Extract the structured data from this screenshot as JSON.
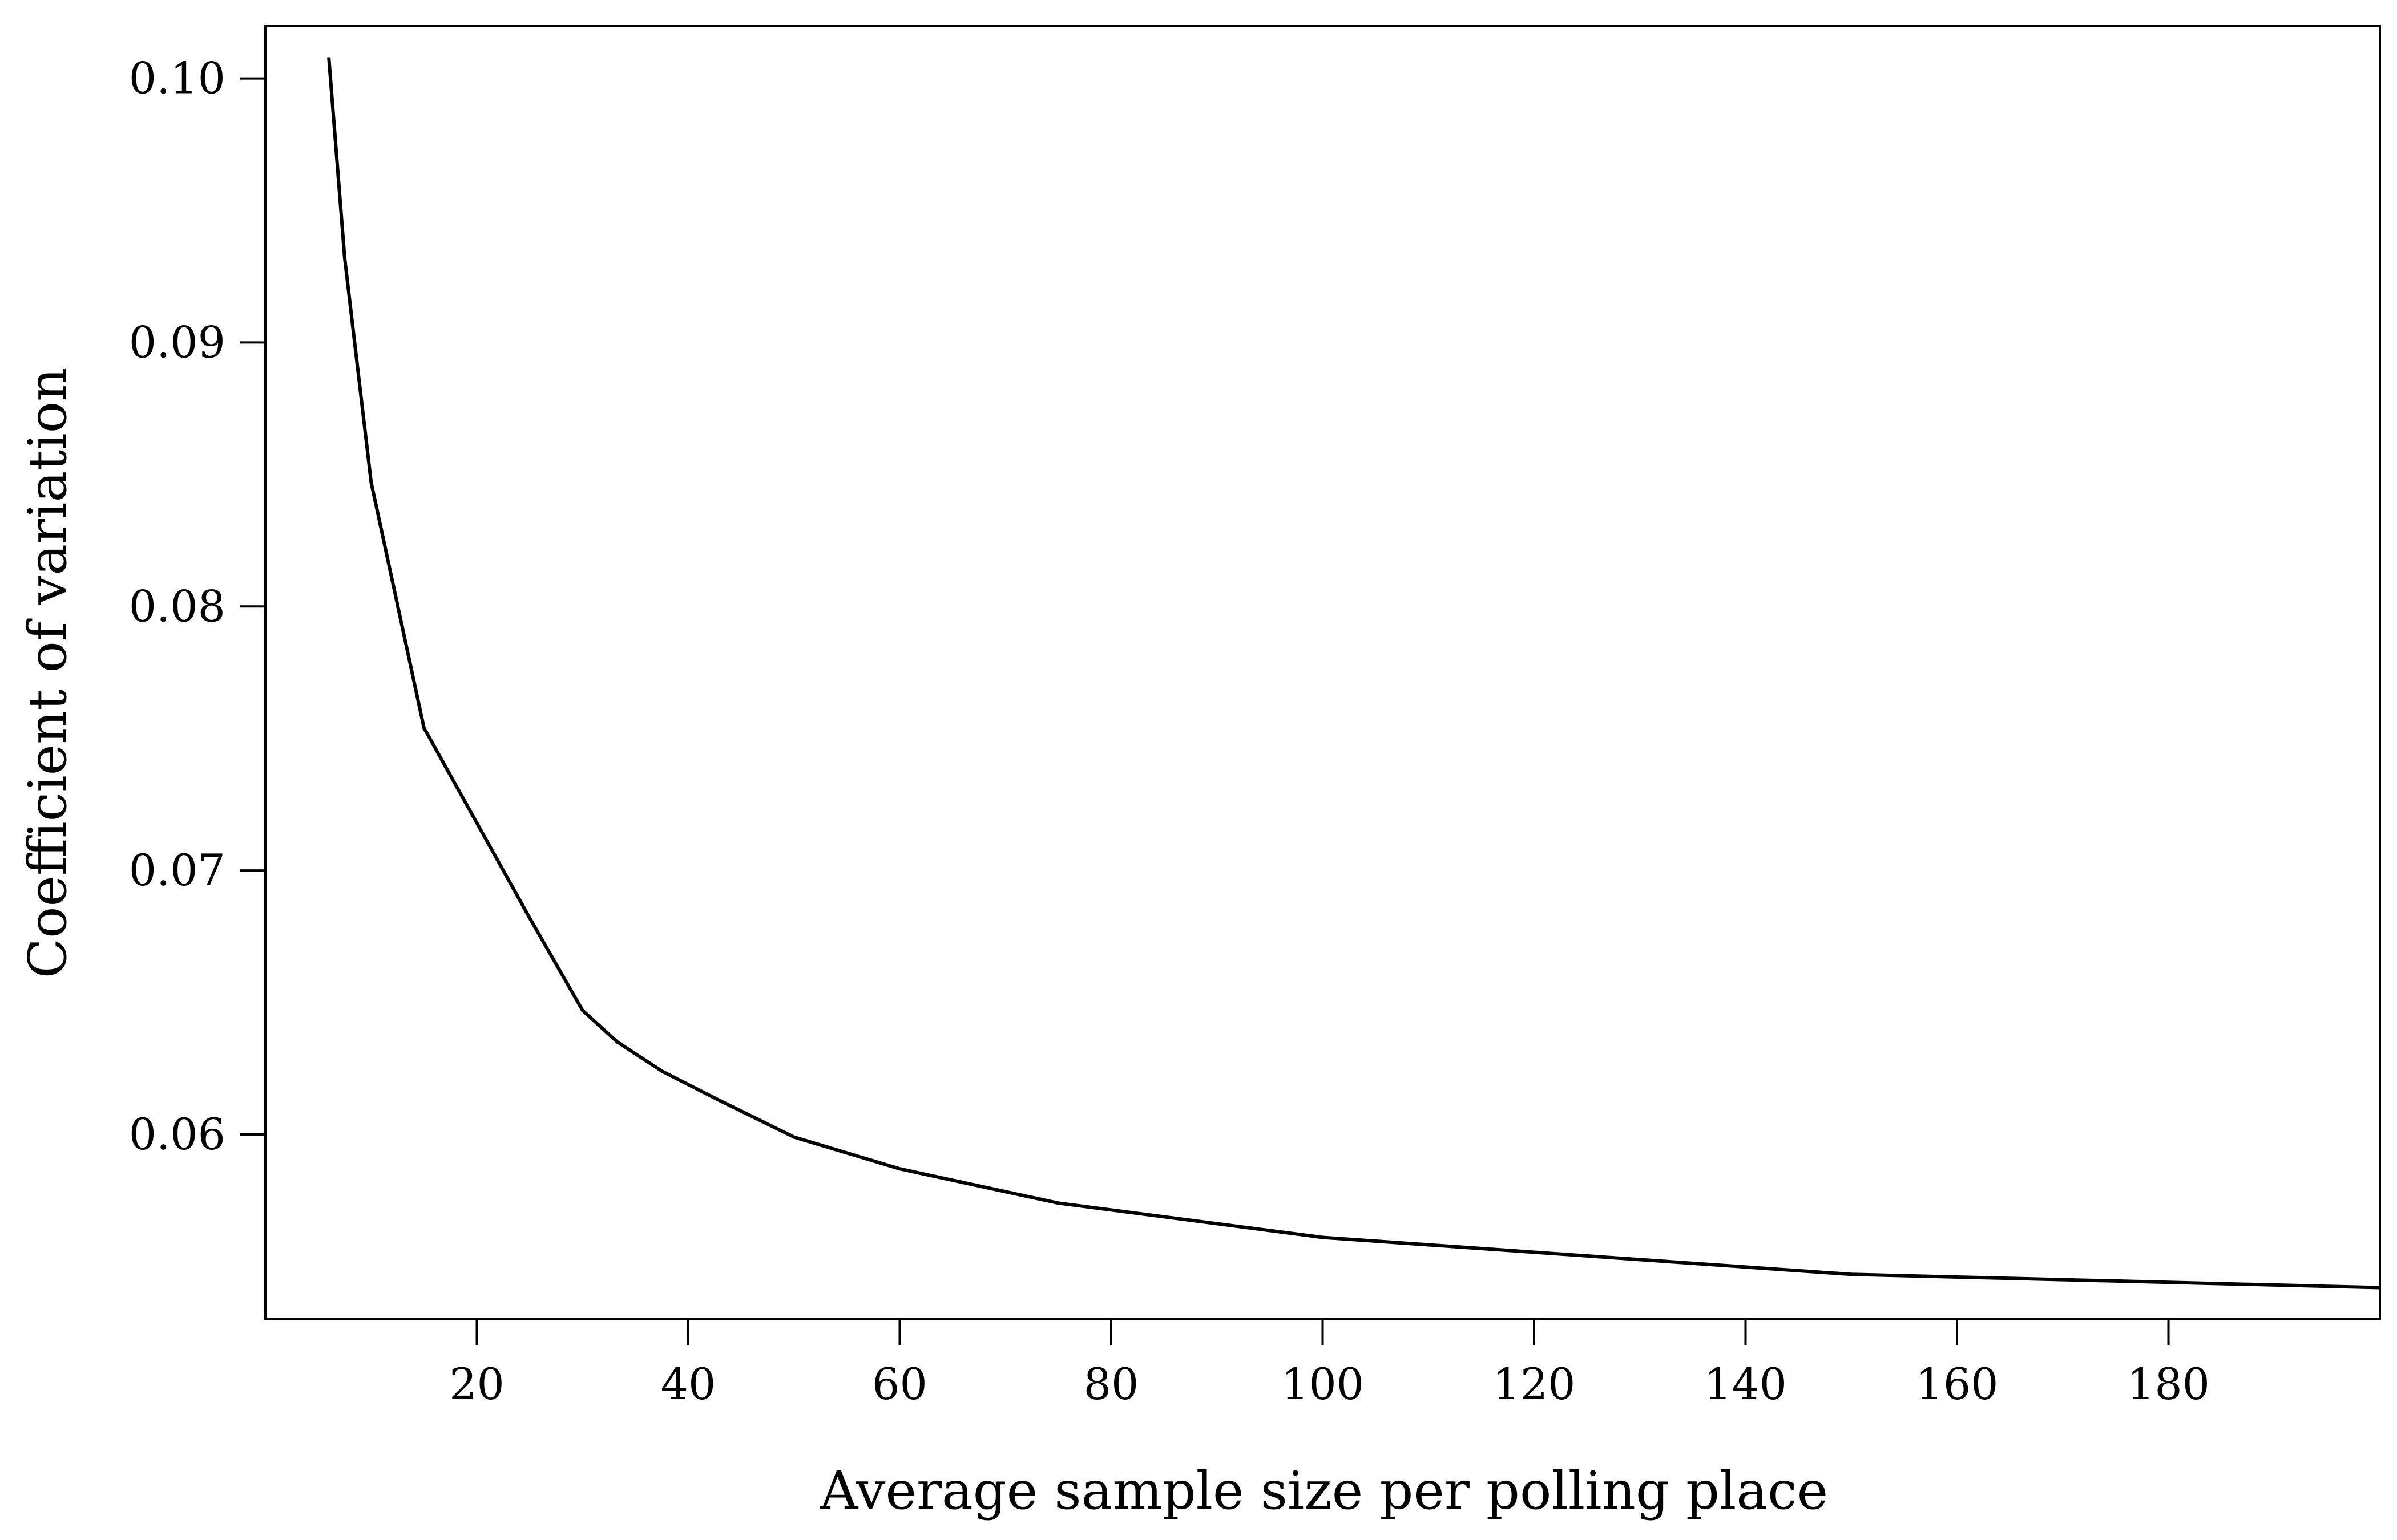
{
  "chart_data": {
    "type": "line",
    "title": "",
    "xlabel": "Average sample size per polling place",
    "ylabel": "Coefficient of variation",
    "xlim": [
      0,
      200
    ],
    "ylim": [
      0.053,
      0.102
    ],
    "grid": false,
    "legend": "none",
    "line_color": "#000000",
    "x_ticks": [
      20,
      40,
      60,
      80,
      100,
      120,
      140,
      160,
      180
    ],
    "x_tick_labels": [
      "20",
      "40",
      "60",
      "80",
      "100",
      "120",
      "140",
      "160",
      "180"
    ],
    "y_ticks": [
      0.06,
      0.07,
      0.08,
      0.09,
      0.1
    ],
    "y_tick_labels": [
      "0.06",
      "0.07",
      "0.08",
      "0.09",
      "0.10"
    ],
    "series": [
      {
        "x": [
          6,
          7.5,
          10,
          15,
          20,
          25,
          30,
          33.3,
          37.5,
          42.9,
          50,
          60,
          75,
          100,
          150,
          200
        ],
        "y": [
          0.1008,
          0.0932,
          0.0847,
          0.0754,
          0.0718,
          0.0682,
          0.0647,
          0.0635,
          0.0624,
          0.0613,
          0.0599,
          0.0587,
          0.0574,
          0.0561,
          0.0547,
          0.0542
        ]
      }
    ]
  }
}
